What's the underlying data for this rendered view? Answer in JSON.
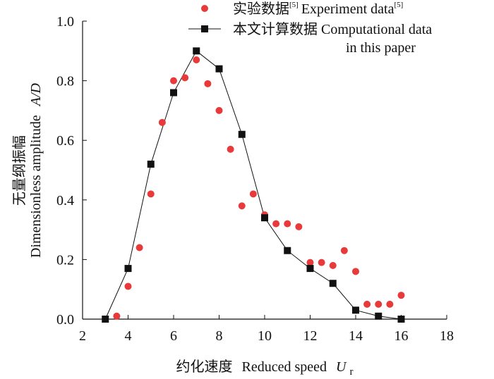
{
  "chart_data": {
    "type": "scatter",
    "xlabel_cn": "约化速度",
    "xlabel_en": "Reduced speed",
    "xlabel_symbol": "U",
    "xlabel_subscript": "r",
    "ylabel_cn": "无量纲振幅",
    "ylabel_en": "Dimensionless amplitude",
    "ylabel_symbol": "A/D",
    "xlim": [
      2,
      18
    ],
    "ylim": [
      0.0,
      1.0
    ],
    "xticks": [
      "2",
      "4",
      "6",
      "8",
      "10",
      "12",
      "14",
      "16",
      "18"
    ],
    "yticks": [
      "0.0",
      "0.2",
      "0.4",
      "0.6",
      "0.8",
      "1.0"
    ],
    "legend_position": "top-right",
    "series": [
      {
        "name": "实验数据[5] Experiment data[5]",
        "label_cn": "实验数据",
        "label_en": "Experiment data",
        "ref": "[5]",
        "marker": "circle",
        "line": false,
        "color": "#e83a3a",
        "x": [
          3.5,
          4.0,
          4.5,
          5.0,
          5.5,
          6.0,
          6.5,
          7.0,
          7.5,
          8.0,
          8.5,
          9.0,
          9.5,
          10.0,
          10.5,
          11.0,
          11.5,
          12.0,
          12.5,
          13.0,
          13.5,
          14.0,
          14.5,
          15.0,
          15.5,
          16.0
        ],
        "y": [
          0.01,
          0.11,
          0.24,
          0.42,
          0.66,
          0.8,
          0.81,
          0.87,
          0.79,
          0.7,
          0.57,
          0.38,
          0.42,
          0.35,
          0.32,
          0.32,
          0.31,
          0.19,
          0.19,
          0.18,
          0.23,
          0.16,
          0.05,
          0.05,
          0.05,
          0.08
        ]
      },
      {
        "name": "本文计算数据 Computational data in this paper",
        "label_cn": "本文计算数据",
        "label_en_line1": "Computational data",
        "label_en_line2": "in this paper",
        "marker": "square",
        "line": true,
        "color": "#111111",
        "x": [
          3,
          4,
          5,
          6,
          7,
          8,
          9,
          10,
          11,
          12,
          13,
          14,
          15,
          16
        ],
        "y": [
          0.0,
          0.17,
          0.52,
          0.76,
          0.9,
          0.84,
          0.62,
          0.34,
          0.23,
          0.17,
          0.12,
          0.03,
          0.01,
          0.0
        ]
      }
    ]
  }
}
